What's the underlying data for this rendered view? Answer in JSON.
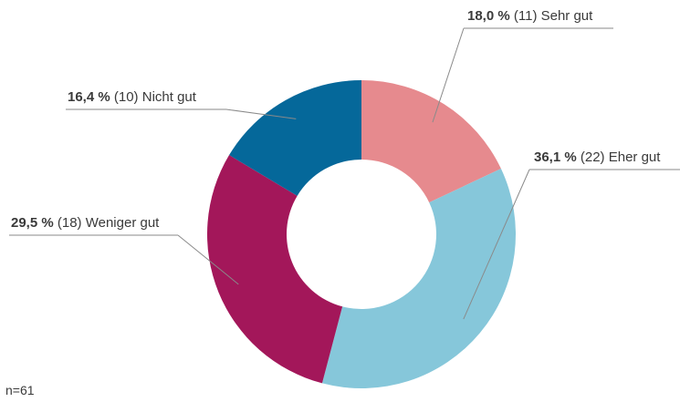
{
  "chart_data": {
    "type": "pie",
    "donut": true,
    "slices": [
      {
        "label": "Sehr gut",
        "percent": 18.0,
        "count": 11,
        "percent_text": "18,0 %",
        "count_text": "(11)",
        "color": "#E68A8E"
      },
      {
        "label": "Eher gut",
        "percent": 36.1,
        "count": 22,
        "percent_text": "36,1 %",
        "count_text": "(22)",
        "color": "#86C7DA"
      },
      {
        "label": "Weniger gut",
        "percent": 29.5,
        "count": 18,
        "percent_text": "29,5 %",
        "count_text": "(18)",
        "color": "#A3175A"
      },
      {
        "label": "Nicht gut",
        "percent": 16.4,
        "count": 10,
        "percent_text": "16,4 %",
        "count_text": "(10)",
        "color": "#05689A"
      }
    ],
    "note": "n=61"
  }
}
